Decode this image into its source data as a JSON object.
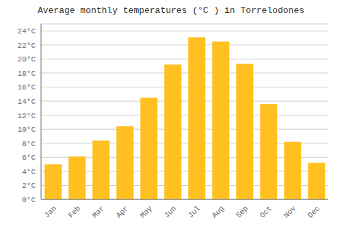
{
  "chart_data": {
    "type": "bar",
    "title": "Average monthly temperatures (°C ) in Torrelodones",
    "categories": [
      "Jan",
      "Feb",
      "Mar",
      "Apr",
      "May",
      "Jun",
      "Jul",
      "Aug",
      "Sep",
      "Oct",
      "Nov",
      "Dec"
    ],
    "values": [
      5.0,
      6.1,
      8.4,
      10.4,
      14.5,
      19.2,
      23.1,
      22.5,
      19.3,
      13.6,
      8.2,
      5.2
    ],
    "color": "#FFC020",
    "ylim": [
      0,
      25
    ],
    "yticks": [
      {
        "value": 0,
        "label": "0°C"
      },
      {
        "value": 2,
        "label": "2°C"
      },
      {
        "value": 4,
        "label": "4°C"
      },
      {
        "value": 6,
        "label": "6°C"
      },
      {
        "value": 8,
        "label": "8°C"
      },
      {
        "value": 10,
        "label": "10°C"
      },
      {
        "value": 12,
        "label": "12°C"
      },
      {
        "value": 14,
        "label": "14°C"
      },
      {
        "value": 16,
        "label": "16°C"
      },
      {
        "value": 18,
        "label": "18°C"
      },
      {
        "value": 20,
        "label": "20°C"
      },
      {
        "value": 22,
        "label": "22°C"
      },
      {
        "value": 24,
        "label": "24°C"
      }
    ],
    "grid": true
  }
}
